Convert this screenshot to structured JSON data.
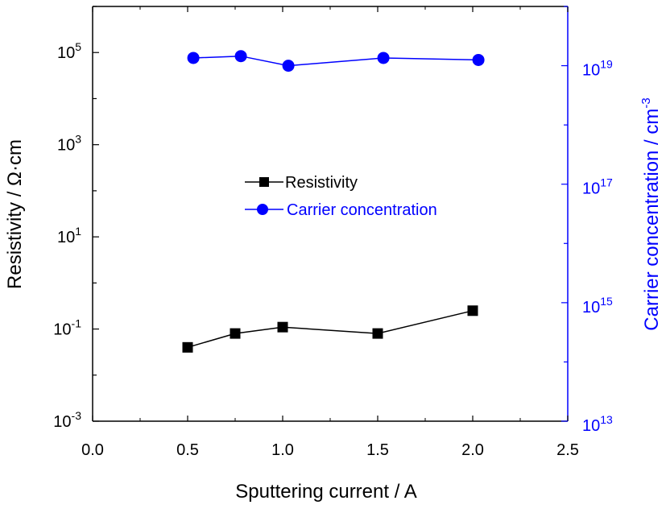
{
  "chart_data": {
    "type": "line",
    "xlabel": "Sputtering current / A",
    "ylabel_left": "Resistivity / Ω·cm",
    "ylabel_right_main": "Carrier concentration / cm",
    "ylabel_right_sup": "-3",
    "xlim": [
      0.0,
      2.5
    ],
    "x_ticks": [
      "0.0",
      "0.5",
      "1.0",
      "1.5",
      "2.0",
      "2.5"
    ],
    "y_left_scale": "log",
    "y_left_lim": [
      0.001,
      1000000
    ],
    "y_left_ticks": [
      {
        "base": "10",
        "exp": "-3",
        "value": 0.001
      },
      {
        "base": "10",
        "exp": "-1",
        "value": 0.1
      },
      {
        "base": "10",
        "exp": "1",
        "value": 10
      },
      {
        "base": "10",
        "exp": "3",
        "value": 1000
      },
      {
        "base": "10",
        "exp": "5",
        "value": 100000
      }
    ],
    "y_right_scale": "log",
    "y_right_lim": [
      10000000000000.0,
      1e+20
    ],
    "y_right_ticks": [
      {
        "base": "10",
        "exp": "13",
        "value": 10000000000000.0
      },
      {
        "base": "10",
        "exp": "15",
        "value": 1000000000000000.0
      },
      {
        "base": "10",
        "exp": "17",
        "value": 1e+17
      },
      {
        "base": "10",
        "exp": "19",
        "value": 1e+19
      }
    ],
    "grid": false,
    "legend_position": "center",
    "series": [
      {
        "name": "Resistivity",
        "axis": "left",
        "marker": "square",
        "color": "#000000",
        "x": [
          0.5,
          0.75,
          1.0,
          1.5,
          2.0
        ],
        "y": [
          0.04,
          0.08,
          0.11,
          0.08,
          0.25
        ]
      },
      {
        "name": "Carrier concentration",
        "axis": "right",
        "marker": "circle",
        "color": "#0000ff",
        "x": [
          0.53,
          0.78,
          1.03,
          1.53,
          2.03
        ],
        "y": [
          1.35e+19,
          1.45e+19,
          1e+19,
          1.35e+19,
          1.25e+19
        ]
      }
    ]
  },
  "colors": {
    "left_axis": "#000000",
    "right_axis": "#0000ff"
  }
}
